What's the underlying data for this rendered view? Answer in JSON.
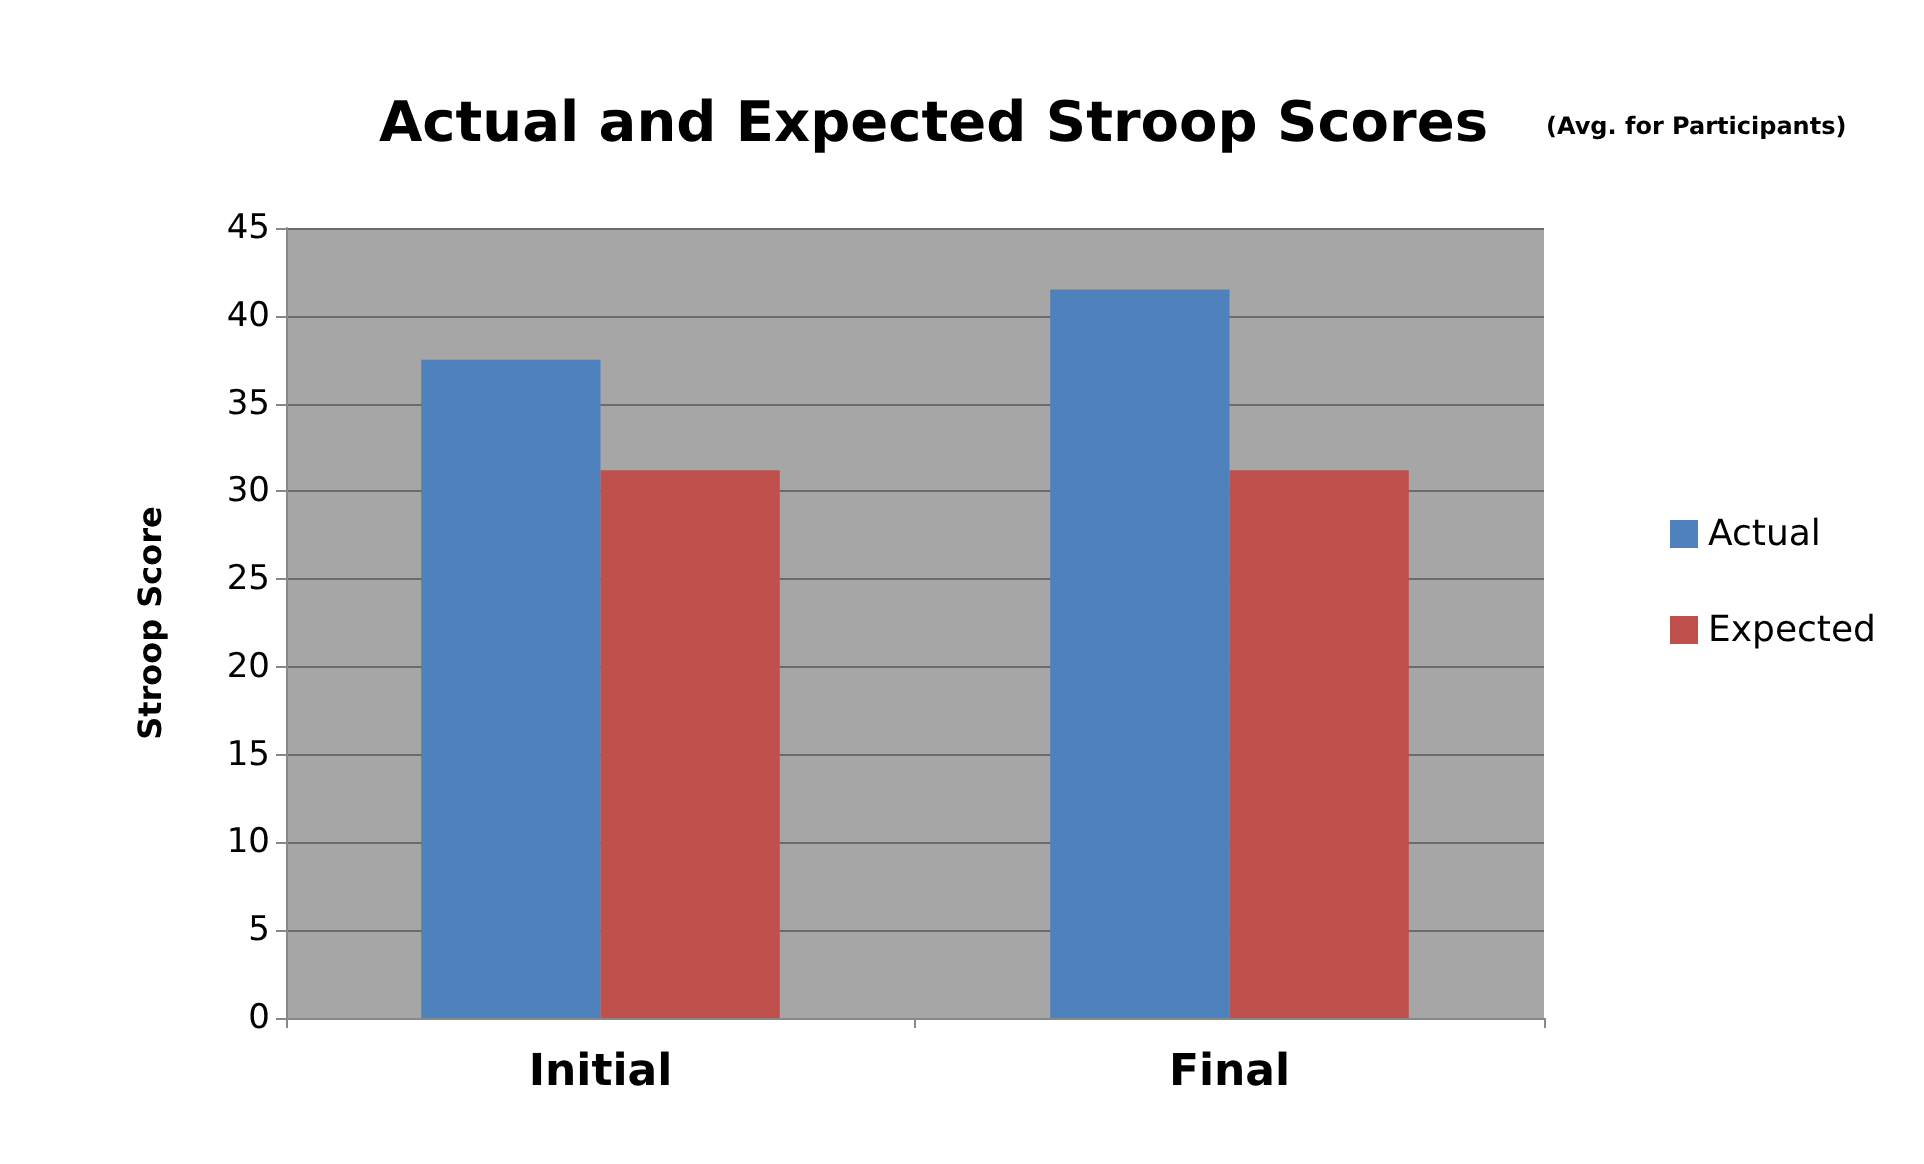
{
  "chart_data": {
    "type": "bar",
    "title": "Actual and Expected Stroop Scores",
    "subtitle": "(Avg. for Participants)",
    "ylabel": "Stroop Score",
    "categories": [
      "Initial",
      "Final"
    ],
    "series": [
      {
        "name": "Actual",
        "color": "#4f81bd",
        "values": [
          37.5,
          41.5
        ]
      },
      {
        "name": "Expected",
        "color": "#c0504d",
        "values": [
          31.2,
          31.2
        ]
      }
    ],
    "ylim": [
      0,
      45
    ],
    "yticks": [
      0,
      5,
      10,
      15,
      20,
      25,
      30,
      35,
      40,
      45
    ],
    "grid": "y",
    "legend": "right"
  }
}
